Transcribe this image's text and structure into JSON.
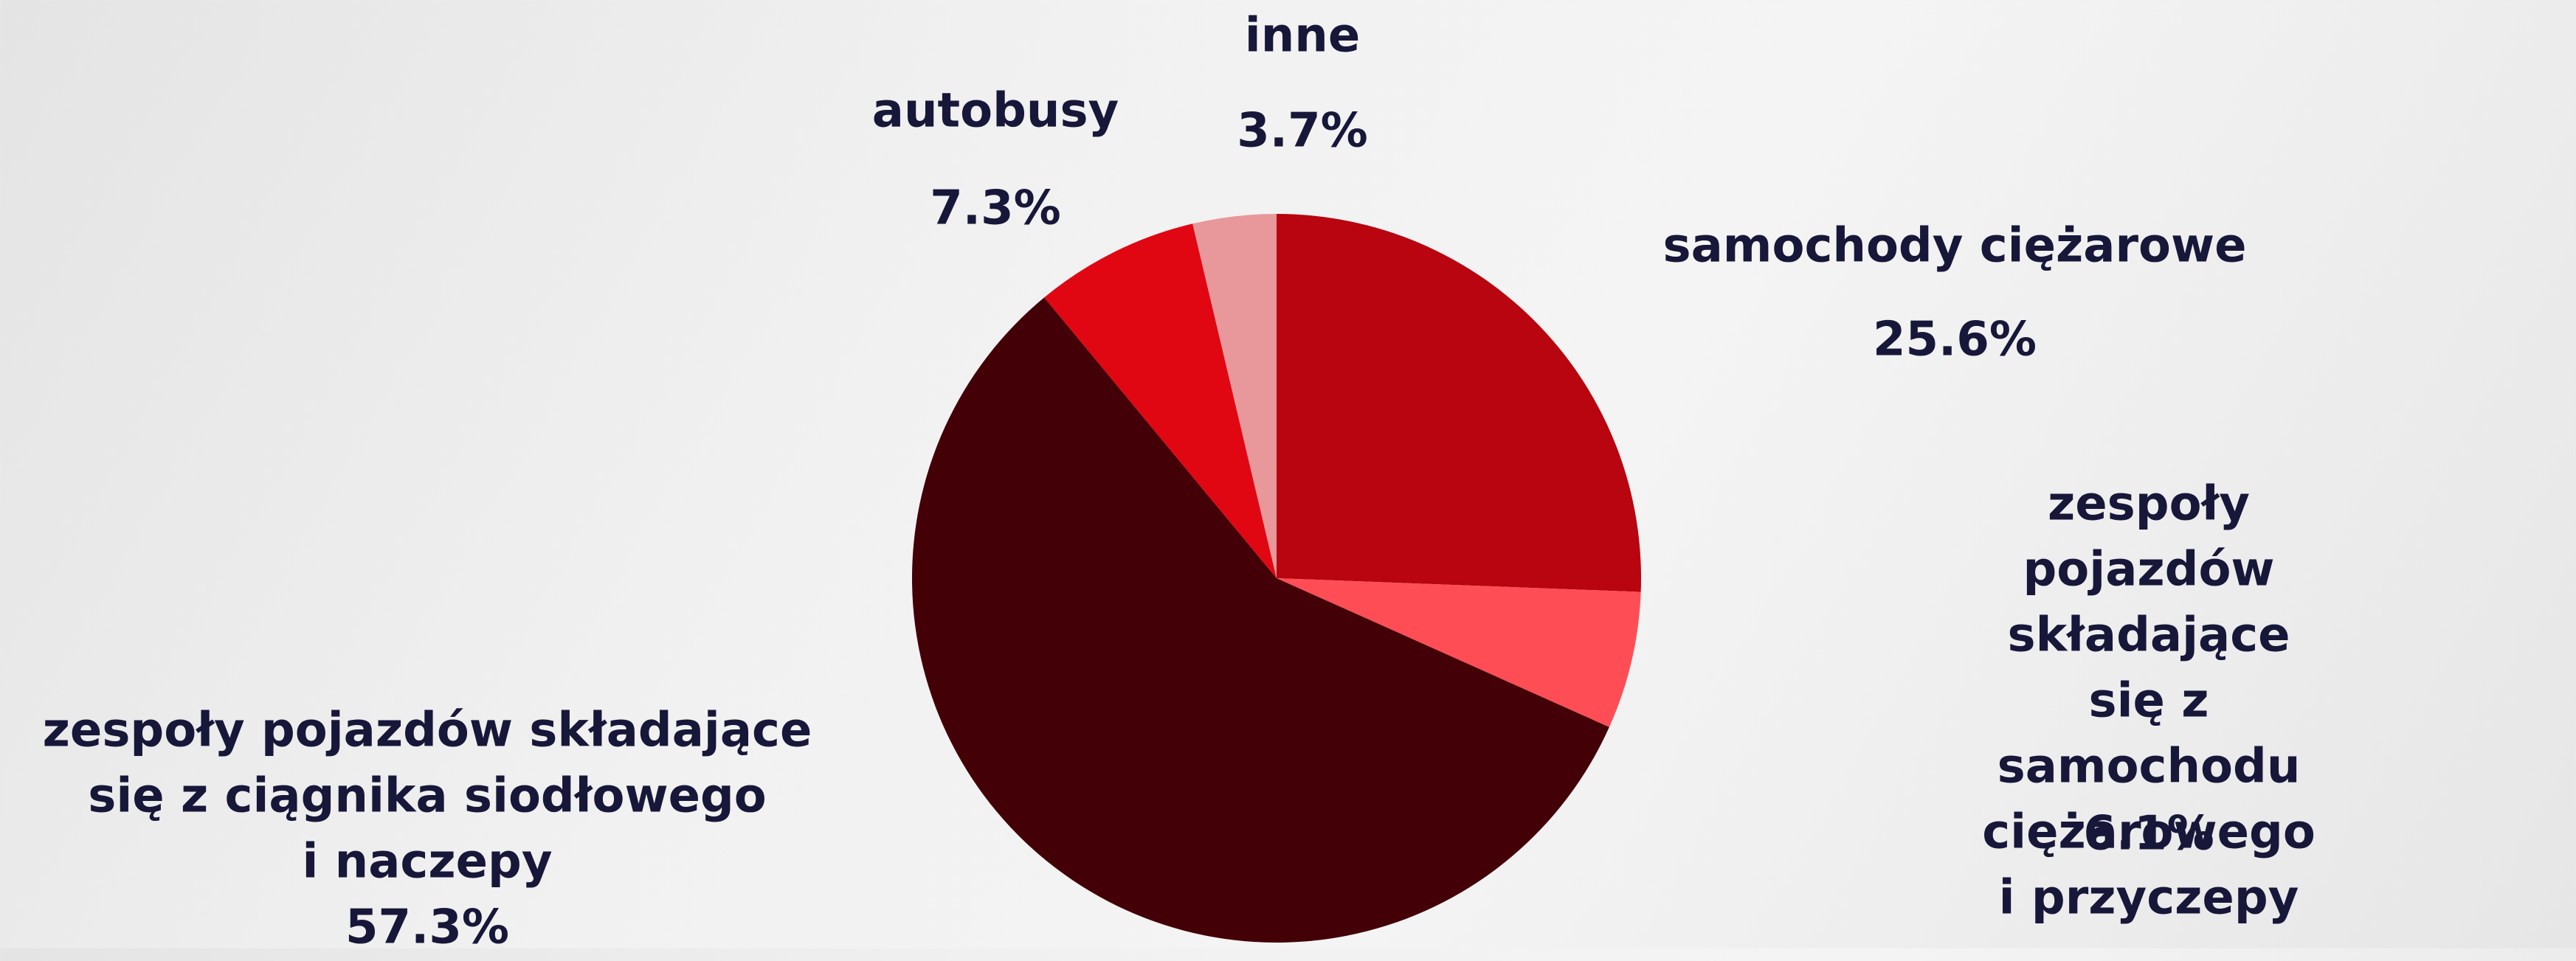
{
  "chart_data": {
    "type": "pie",
    "categories": [
      "samochody ciężarowe",
      "zespoły pojazdów składające\nsię z samochodu ciężarowego\ni przyczepy",
      "zespoły pojazdów składające\nsię z ciągnika siodłowego\ni naczepy",
      "autobusy",
      "inne"
    ],
    "values": [
      25.6,
      6.1,
      57.3,
      7.3,
      3.7
    ],
    "value_labels": [
      "25.6%",
      "6.1%",
      "57.3%",
      "7.3%",
      "3.7%"
    ],
    "colors": [
      "#b8050f",
      "#ff4d55",
      "#430006",
      "#e00713",
      "#e8979b"
    ]
  }
}
